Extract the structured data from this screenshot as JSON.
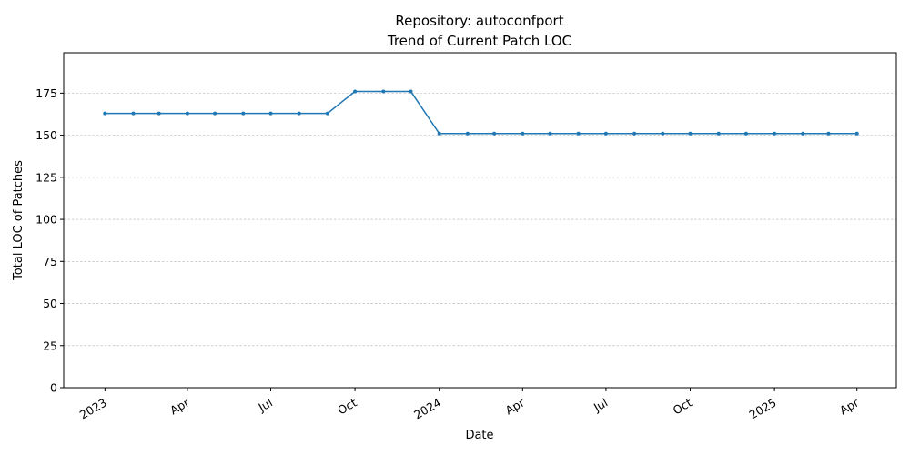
{
  "chart_data": {
    "type": "line",
    "title_line1": "Repository: autoconfport",
    "title_line2": "Trend of Current Patch LOC",
    "xlabel": "Date",
    "ylabel": "Total LOC of Patches",
    "ylim": [
      0,
      199
    ],
    "yticks": [
      0,
      25,
      50,
      75,
      100,
      125,
      150,
      175
    ],
    "xlim": [
      "2022-11-17",
      "2025-05-14"
    ],
    "xticks": [
      {
        "date": "2023-01-01",
        "label": "2023"
      },
      {
        "date": "2023-04-01",
        "label": "Apr"
      },
      {
        "date": "2023-07-01",
        "label": "Jul"
      },
      {
        "date": "2023-10-01",
        "label": "Oct"
      },
      {
        "date": "2024-01-01",
        "label": "2024"
      },
      {
        "date": "2024-04-01",
        "label": "Apr"
      },
      {
        "date": "2024-07-01",
        "label": "Jul"
      },
      {
        "date": "2024-10-01",
        "label": "Oct"
      },
      {
        "date": "2025-01-01",
        "label": "2025"
      },
      {
        "date": "2025-04-01",
        "label": "Apr"
      }
    ],
    "grid": "y",
    "line_color": "#1f77b4",
    "series": [
      {
        "x": [
          "2023-01-01",
          "2023-02-01",
          "2023-03-01",
          "2023-04-01",
          "2023-05-01",
          "2023-06-01",
          "2023-07-01",
          "2023-08-01",
          "2023-09-01",
          "2023-10-01",
          "2023-11-01",
          "2023-12-01",
          "2024-01-01",
          "2024-02-01",
          "2024-03-01",
          "2024-04-01",
          "2024-05-01",
          "2024-06-01",
          "2024-07-01",
          "2024-08-01",
          "2024-09-01",
          "2024-10-01",
          "2024-11-01",
          "2024-12-01",
          "2025-01-01",
          "2025-02-01",
          "2025-03-01",
          "2025-04-01"
        ],
        "values": [
          163,
          163,
          163,
          163,
          163,
          163,
          163,
          163,
          163,
          176,
          176,
          176,
          151,
          151,
          151,
          151,
          151,
          151,
          151,
          151,
          151,
          151,
          151,
          151,
          151,
          151,
          151,
          151
        ]
      }
    ]
  }
}
